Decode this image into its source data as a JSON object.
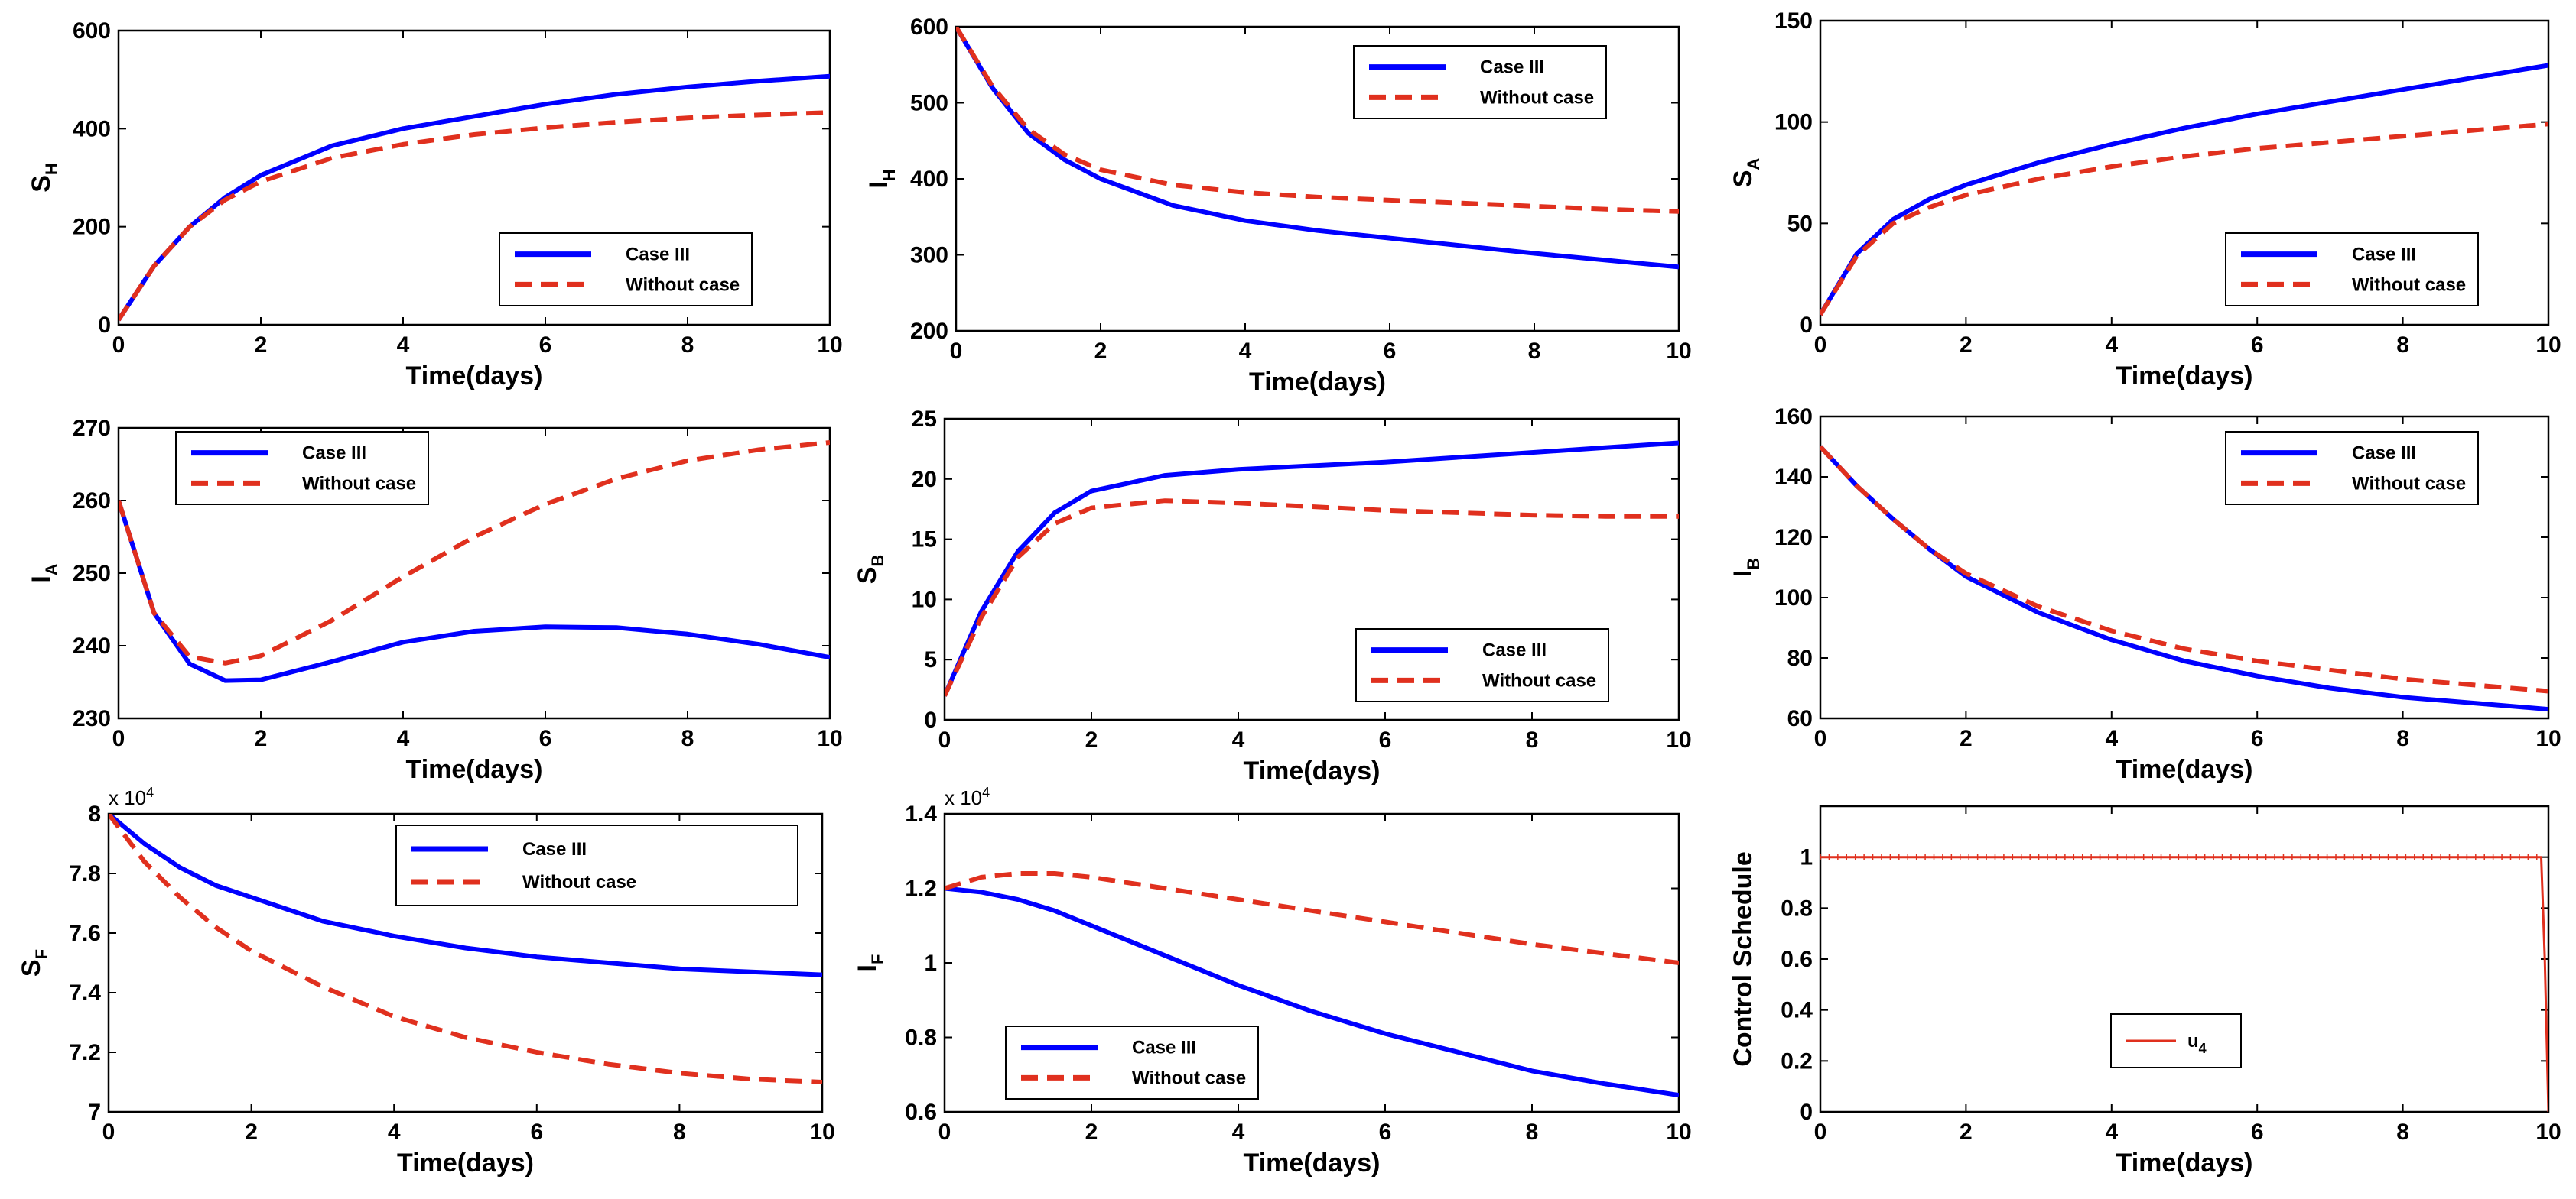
{
  "chart_data": [
    {
      "type": "line",
      "xlabel": "Time(days)",
      "ylabel": "S",
      "ylabel_sub": "H",
      "xlim": [
        0,
        10
      ],
      "ylim": [
        0,
        600
      ],
      "xticks": [
        "0",
        "2",
        "4",
        "6",
        "8",
        "10"
      ],
      "yticks": [
        "0",
        "200",
        "400",
        "600"
      ],
      "legend": "bottom-right",
      "series": [
        {
          "name": "Case III",
          "color": "#0000ff",
          "dashed": false,
          "x": [
            0,
            0.5,
            1,
            1.5,
            2,
            3,
            4,
            5,
            6,
            7,
            8,
            9,
            10
          ],
          "values": [
            10,
            120,
            200,
            260,
            305,
            365,
            400,
            425,
            450,
            470,
            485,
            497,
            507
          ]
        },
        {
          "name": "Without case",
          "color": "#e0301e",
          "dashed": true,
          "x": [
            0,
            0.5,
            1,
            1.5,
            2,
            3,
            4,
            5,
            6,
            7,
            8,
            9,
            10
          ],
          "values": [
            10,
            120,
            200,
            255,
            292,
            340,
            368,
            388,
            402,
            413,
            422,
            428,
            433
          ]
        }
      ]
    },
    {
      "type": "line",
      "xlabel": "Time(days)",
      "ylabel": "I",
      "ylabel_sub": "H",
      "xlim": [
        0,
        10
      ],
      "ylim": [
        200,
        600
      ],
      "xticks": [
        "0",
        "2",
        "4",
        "6",
        "8",
        "10"
      ],
      "yticks": [
        "200",
        "300",
        "400",
        "500",
        "600"
      ],
      "legend": "top-right",
      "series": [
        {
          "name": "Case III",
          "color": "#0000ff",
          "dashed": false,
          "x": [
            0,
            0.5,
            1,
            1.5,
            2,
            3,
            4,
            5,
            6,
            7,
            8,
            9,
            10
          ],
          "values": [
            600,
            520,
            460,
            425,
            400,
            365,
            345,
            332,
            322,
            312,
            302,
            293,
            284
          ]
        },
        {
          "name": "Without case",
          "color": "#e0301e",
          "dashed": true,
          "x": [
            0,
            0.5,
            1,
            1.5,
            2,
            3,
            4,
            5,
            6,
            7,
            8,
            9,
            10
          ],
          "values": [
            600,
            522,
            465,
            432,
            412,
            392,
            382,
            376,
            372,
            368,
            364,
            360,
            357
          ]
        }
      ]
    },
    {
      "type": "line",
      "xlabel": "Time(days)",
      "ylabel": "S",
      "ylabel_sub": "A",
      "xlim": [
        0,
        10
      ],
      "ylim": [
        0,
        150
      ],
      "xticks": [
        "0",
        "2",
        "4",
        "6",
        "8",
        "10"
      ],
      "yticks": [
        "0",
        "50",
        "100",
        "150"
      ],
      "legend": "bottom-right",
      "series": [
        {
          "name": "Case III",
          "color": "#0000ff",
          "dashed": false,
          "x": [
            0,
            0.5,
            1,
            1.5,
            2,
            3,
            4,
            5,
            6,
            7,
            8,
            9,
            10
          ],
          "values": [
            5,
            35,
            52,
            62,
            69,
            80,
            89,
            97,
            104,
            110,
            116,
            122,
            128
          ]
        },
        {
          "name": "Without case",
          "color": "#e0301e",
          "dashed": true,
          "x": [
            0,
            0.5,
            1,
            1.5,
            2,
            3,
            4,
            5,
            6,
            7,
            8,
            9,
            10
          ],
          "values": [
            5,
            34,
            50,
            58,
            64,
            72,
            78,
            83,
            87,
            90,
            93,
            96,
            99
          ]
        }
      ]
    },
    {
      "type": "line",
      "xlabel": "Time(days)",
      "ylabel": "I",
      "ylabel_sub": "A",
      "xlim": [
        0,
        10
      ],
      "ylim": [
        230,
        270
      ],
      "xticks": [
        "0",
        "2",
        "4",
        "6",
        "8",
        "10"
      ],
      "yticks": [
        "230",
        "240",
        "250",
        "260",
        "270"
      ],
      "legend": "top-left",
      "series": [
        {
          "name": "Case III",
          "color": "#0000ff",
          "dashed": false,
          "x": [
            0,
            0.5,
            1,
            1.5,
            2,
            3,
            4,
            5,
            6,
            7,
            8,
            9,
            10
          ],
          "values": [
            260,
            244.5,
            237.5,
            235.2,
            235.3,
            237.8,
            240.5,
            242,
            242.6,
            242.5,
            241.6,
            240.2,
            238.4
          ]
        },
        {
          "name": "Without case",
          "color": "#e0301e",
          "dashed": true,
          "x": [
            0,
            0.5,
            1,
            1.5,
            2,
            3,
            4,
            5,
            6,
            7,
            8,
            9,
            10
          ],
          "values": [
            260,
            244.5,
            238.5,
            237.6,
            238.6,
            243.5,
            249.5,
            255,
            259.5,
            263,
            265.5,
            267,
            268
          ]
        }
      ]
    },
    {
      "type": "line",
      "xlabel": "Time(days)",
      "ylabel": "S",
      "ylabel_sub": "B",
      "xlim": [
        0,
        10
      ],
      "ylim": [
        0,
        25
      ],
      "xticks": [
        "0",
        "2",
        "4",
        "6",
        "8",
        "10"
      ],
      "yticks": [
        "0",
        "5",
        "10",
        "15",
        "20",
        "25"
      ],
      "legend": "bottom-right",
      "series": [
        {
          "name": "Case III",
          "color": "#0000ff",
          "dashed": false,
          "x": [
            0,
            0.5,
            1,
            1.5,
            2,
            3,
            4,
            5,
            6,
            7,
            8,
            9,
            10
          ],
          "values": [
            2,
            9,
            14,
            17.2,
            19,
            20.3,
            20.8,
            21.1,
            21.4,
            21.8,
            22.2,
            22.6,
            23
          ]
        },
        {
          "name": "Without case",
          "color": "#e0301e",
          "dashed": true,
          "x": [
            0,
            0.5,
            1,
            1.5,
            2,
            3,
            4,
            5,
            6,
            7,
            8,
            9,
            10
          ],
          "values": [
            2,
            8.5,
            13.5,
            16.3,
            17.6,
            18.2,
            18,
            17.7,
            17.4,
            17.2,
            17,
            16.9,
            16.9
          ]
        }
      ]
    },
    {
      "type": "line",
      "xlabel": "Time(days)",
      "ylabel": "I",
      "ylabel_sub": "B",
      "xlim": [
        0,
        10
      ],
      "ylim": [
        60,
        160
      ],
      "xticks": [
        "0",
        "2",
        "4",
        "6",
        "8",
        "10"
      ],
      "yticks": [
        "60",
        "80",
        "100",
        "120",
        "140",
        "160"
      ],
      "legend": "top-right",
      "series": [
        {
          "name": "Case III",
          "color": "#0000ff",
          "dashed": false,
          "x": [
            0,
            0.5,
            1,
            1.5,
            2,
            3,
            4,
            5,
            6,
            7,
            8,
            9,
            10
          ],
          "values": [
            150,
            137,
            126,
            116,
            107,
            95,
            86,
            79,
            74,
            70,
            67,
            65,
            63
          ]
        },
        {
          "name": "Without case",
          "color": "#e0301e",
          "dashed": true,
          "x": [
            0,
            0.5,
            1,
            1.5,
            2,
            3,
            4,
            5,
            6,
            7,
            8,
            9,
            10
          ],
          "values": [
            150,
            137,
            126,
            116,
            108,
            97,
            89,
            83,
            79,
            76,
            73,
            71,
            69
          ]
        }
      ]
    },
    {
      "type": "line",
      "xlabel": "Time(days)",
      "ylabel": "S",
      "ylabel_sub": "F",
      "multiplier": "x 10",
      "multiplier_exp": "4",
      "xlim": [
        0,
        10
      ],
      "ylim": [
        7,
        8
      ],
      "xticks": [
        "0",
        "2",
        "4",
        "6",
        "8",
        "10"
      ],
      "yticks": [
        "7",
        "7.2",
        "7.4",
        "7.6",
        "7.8",
        "8"
      ],
      "legend": "top-right",
      "series": [
        {
          "name": "Case III",
          "color": "#0000ff",
          "dashed": false,
          "x": [
            0,
            0.5,
            1,
            1.5,
            2,
            3,
            4,
            5,
            6,
            7,
            8,
            9,
            10
          ],
          "values": [
            8,
            7.9,
            7.82,
            7.76,
            7.72,
            7.64,
            7.59,
            7.55,
            7.52,
            7.5,
            7.48,
            7.47,
            7.46
          ]
        },
        {
          "name": "Without case",
          "color": "#e0301e",
          "dashed": true,
          "x": [
            0,
            0.5,
            1,
            1.5,
            2,
            3,
            4,
            5,
            6,
            7,
            8,
            9,
            10
          ],
          "values": [
            8,
            7.84,
            7.72,
            7.62,
            7.54,
            7.42,
            7.32,
            7.25,
            7.2,
            7.16,
            7.13,
            7.11,
            7.1
          ]
        }
      ]
    },
    {
      "type": "line",
      "xlabel": "Time(days)",
      "ylabel": "I",
      "ylabel_sub": "F",
      "multiplier": "x 10",
      "multiplier_exp": "4",
      "xlim": [
        0,
        10
      ],
      "ylim": [
        0.6,
        1.4
      ],
      "xticks": [
        "0",
        "2",
        "4",
        "6",
        "8",
        "10"
      ],
      "yticks": [
        "0.6",
        "0.8",
        "1",
        "1.2",
        "1.4"
      ],
      "legend": "bottom-left",
      "series": [
        {
          "name": "Case III",
          "color": "#0000ff",
          "dashed": false,
          "x": [
            0,
            0.5,
            1,
            1.5,
            2,
            3,
            4,
            5,
            6,
            7,
            8,
            9,
            10
          ],
          "values": [
            1.2,
            1.19,
            1.17,
            1.14,
            1.1,
            1.02,
            0.94,
            0.87,
            0.81,
            0.76,
            0.71,
            0.675,
            0.645
          ]
        },
        {
          "name": "Without case",
          "color": "#e0301e",
          "dashed": true,
          "x": [
            0,
            0.5,
            1,
            1.5,
            2,
            3,
            4,
            5,
            6,
            7,
            8,
            9,
            10
          ],
          "values": [
            1.2,
            1.23,
            1.24,
            1.24,
            1.23,
            1.2,
            1.17,
            1.14,
            1.11,
            1.08,
            1.05,
            1.025,
            1.0
          ]
        }
      ]
    },
    {
      "type": "line",
      "xlabel": "Time(days)",
      "ylabel": "Control Schedule",
      "ylabel_sub": "",
      "xlim": [
        0,
        10
      ],
      "ylim": [
        0,
        1.2
      ],
      "xticks": [
        "0",
        "2",
        "4",
        "6",
        "8",
        "10"
      ],
      "yticks": [
        "0",
        "0.2",
        "0.4",
        "0.6",
        "0.8",
        "1"
      ],
      "legend": "center",
      "series": [
        {
          "name": "u",
          "name_sub": "4",
          "color": "#e0301e",
          "dashed": false,
          "markers": true,
          "x": [
            0,
            1,
            2,
            3,
            4,
            5,
            6,
            7,
            8,
            9,
            9.9,
            9.95,
            10
          ],
          "values": [
            1,
            1,
            1,
            1,
            1,
            1,
            1,
            1,
            1,
            1,
            1,
            0.6,
            0
          ]
        }
      ]
    }
  ]
}
